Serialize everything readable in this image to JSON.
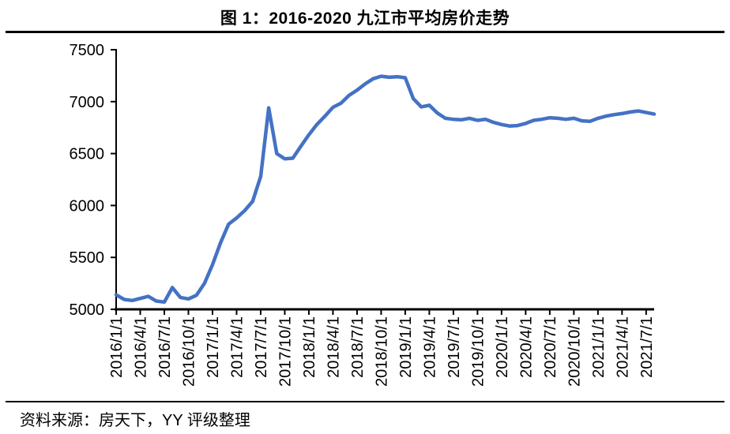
{
  "header": {
    "title": "图 1：2016-2020 九江市平均房价走势"
  },
  "footer": {
    "source": "资料来源：房天下，YY 评级整理"
  },
  "chart_data": {
    "type": "line",
    "title": "图 1：2016-2020 九江市平均房价走势",
    "xlabel": "",
    "ylabel": "",
    "grid": false,
    "legend": "none",
    "line_color": "#4472C4",
    "ylim": [
      5000,
      7500
    ],
    "y_ticks": [
      5000,
      5500,
      6000,
      6500,
      7000,
      7500
    ],
    "x_tick_every": 3,
    "x_tick_labels": [
      "2016/1/1",
      "2016/4/1",
      "2016/7/1",
      "2016/10/1",
      "2017/1/1",
      "2017/4/1",
      "2017/7/1",
      "2017/10/1",
      "2018/1/1",
      "2018/4/1",
      "2018/7/1",
      "2018/10/1",
      "2019/1/1",
      "2019/4/1",
      "2019/7/1",
      "2019/10/1",
      "2020/1/1",
      "2020/4/1",
      "2020/7/1",
      "2020/10/1",
      "2021/1/1",
      "2021/4/1",
      "2021/7/1"
    ],
    "x": [
      "2016/1/1",
      "2016/2/1",
      "2016/3/1",
      "2016/4/1",
      "2016/5/1",
      "2016/6/1",
      "2016/7/1",
      "2016/8/1",
      "2016/9/1",
      "2016/10/1",
      "2016/11/1",
      "2016/12/1",
      "2017/1/1",
      "2017/2/1",
      "2017/3/1",
      "2017/4/1",
      "2017/5/1",
      "2017/6/1",
      "2017/7/1",
      "2017/8/1",
      "2017/9/1",
      "2017/10/1",
      "2017/11/1",
      "2017/12/1",
      "2018/1/1",
      "2018/2/1",
      "2018/3/1",
      "2018/4/1",
      "2018/5/1",
      "2018/6/1",
      "2018/7/1",
      "2018/8/1",
      "2018/9/1",
      "2018/10/1",
      "2018/11/1",
      "2018/12/1",
      "2019/1/1",
      "2019/2/1",
      "2019/3/1",
      "2019/4/1",
      "2019/5/1",
      "2019/6/1",
      "2019/7/1",
      "2019/8/1",
      "2019/9/1",
      "2019/10/1",
      "2019/11/1",
      "2019/12/1",
      "2020/1/1",
      "2020/2/1",
      "2020/3/1",
      "2020/4/1",
      "2020/5/1",
      "2020/6/1",
      "2020/7/1",
      "2020/8/1",
      "2020/9/1",
      "2020/10/1",
      "2020/11/1",
      "2020/12/1",
      "2021/1/1",
      "2021/2/1",
      "2021/3/1",
      "2021/4/1",
      "2021/5/1",
      "2021/6/1",
      "2021/7/1",
      "2021/8/1"
    ],
    "series": [
      {
        "name": "九江市平均房价",
        "values": [
          5140,
          5095,
          5085,
          5105,
          5125,
          5080,
          5070,
          5210,
          5115,
          5100,
          5135,
          5250,
          5430,
          5640,
          5820,
          5880,
          5950,
          6040,
          6280,
          6940,
          6500,
          6450,
          6455,
          6570,
          6680,
          6780,
          6860,
          6945,
          6985,
          7060,
          7110,
          7170,
          7220,
          7245,
          7235,
          7240,
          7230,
          7030,
          6950,
          6965,
          6890,
          6840,
          6830,
          6825,
          6840,
          6820,
          6830,
          6800,
          6780,
          6765,
          6770,
          6790,
          6820,
          6830,
          6845,
          6840,
          6830,
          6840,
          6815,
          6810,
          6840,
          6860,
          6875,
          6885,
          6900,
          6910,
          6895,
          6880
        ]
      }
    ]
  }
}
